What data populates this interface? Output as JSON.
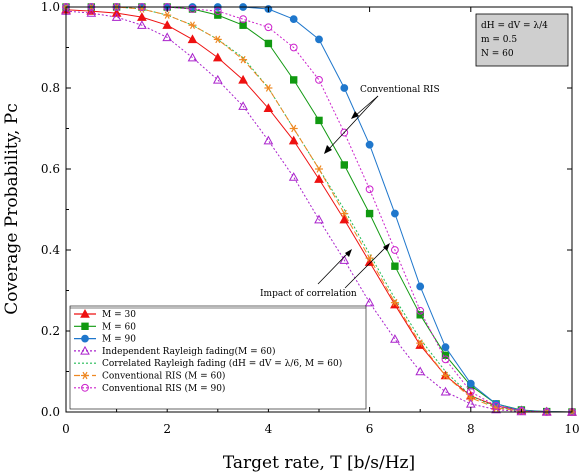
{
  "chart_data": {
    "type": "line",
    "title": "",
    "xlabel": "Target rate, T [b/s/Hz]",
    "ylabel": "Coverage Probability, Pc",
    "xlim": [
      0,
      10
    ],
    "ylim": [
      0,
      1
    ],
    "x_ticks": [
      "0",
      "2",
      "4",
      "6",
      "8",
      "10"
    ],
    "y_ticks": [
      "0.0",
      "0.2",
      "0.4",
      "0.6",
      "0.8",
      "1.0"
    ],
    "grid": false,
    "legend_position": "bottom-left",
    "x": [
      0,
      0.5,
      1,
      1.5,
      2,
      2.5,
      3,
      3.5,
      4,
      4.5,
      5,
      5.5,
      6,
      6.5,
      7,
      7.5,
      8,
      8.5,
      9,
      9.5,
      10
    ],
    "series": [
      {
        "name": "M = 30",
        "color": "#ee1111",
        "marker": "triangle",
        "line": "solid",
        "values": [
          0.993,
          0.99,
          0.985,
          0.975,
          0.955,
          0.92,
          0.875,
          0.82,
          0.75,
          0.67,
          0.575,
          0.475,
          0.37,
          0.265,
          0.165,
          0.09,
          0.04,
          0.015,
          0.004,
          0.001,
          0.0
        ]
      },
      {
        "name": "M = 60",
        "color": "#119911",
        "marker": "square",
        "line": "solid",
        "values": [
          1.0,
          1.0,
          1.0,
          1.0,
          1.0,
          0.995,
          0.98,
          0.955,
          0.91,
          0.82,
          0.72,
          0.61,
          0.49,
          0.36,
          0.24,
          0.14,
          0.065,
          0.02,
          0.005,
          0.001,
          0.0
        ]
      },
      {
        "name": "M = 90",
        "color": "#1f77cc",
        "marker": "circle",
        "line": "solid",
        "values": [
          1.0,
          1.0,
          1.0,
          1.0,
          1.0,
          1.0,
          1.0,
          1.0,
          0.995,
          0.97,
          0.92,
          0.8,
          0.66,
          0.49,
          0.31,
          0.16,
          0.07,
          0.02,
          0.004,
          0.001,
          0.0
        ]
      },
      {
        "name": "Independent Rayleigh fading(M = 60)",
        "color": "#aa22cc",
        "marker": "triangle-open",
        "line": "dotted",
        "values": [
          0.99,
          0.985,
          0.975,
          0.955,
          0.925,
          0.875,
          0.82,
          0.755,
          0.67,
          0.58,
          0.475,
          0.375,
          0.27,
          0.18,
          0.1,
          0.05,
          0.02,
          0.006,
          0.001,
          0.0,
          0.0
        ]
      },
      {
        "name": "Correlated Rayleigh fading (dH = dV = λ/6, M = 60)",
        "color": "#22bb55",
        "marker": "none",
        "line": "dotted",
        "values": [
          1.0,
          1.0,
          1.0,
          0.995,
          0.98,
          0.955,
          0.92,
          0.875,
          0.8,
          0.7,
          0.6,
          0.5,
          0.39,
          0.28,
          0.18,
          0.1,
          0.04,
          0.012,
          0.002,
          0.0,
          0.0
        ]
      },
      {
        "name": "Conventional RIS (M = 60)",
        "color": "#ee8822",
        "marker": "star",
        "line": "dashed",
        "values": [
          1.0,
          1.0,
          1.0,
          0.995,
          0.98,
          0.955,
          0.92,
          0.87,
          0.8,
          0.7,
          0.6,
          0.49,
          0.38,
          0.27,
          0.17,
          0.09,
          0.035,
          0.01,
          0.002,
          0.0,
          0.0
        ]
      },
      {
        "name": "Conventional RIS (M = 90)",
        "color": "#cc22cc",
        "marker": "circle-open",
        "line": "dotted",
        "values": [
          1.0,
          1.0,
          1.0,
          1.0,
          1.0,
          0.995,
          0.99,
          0.97,
          0.95,
          0.9,
          0.82,
          0.69,
          0.55,
          0.4,
          0.25,
          0.13,
          0.05,
          0.015,
          0.003,
          0.0,
          0.0
        ]
      }
    ],
    "annotations": [
      {
        "text": "Conventional RIS"
      },
      {
        "text": "Impact of correlation"
      }
    ],
    "parameter_box": [
      "dH = dV = λ/4",
      "m = 0.5",
      "N = 60"
    ]
  }
}
